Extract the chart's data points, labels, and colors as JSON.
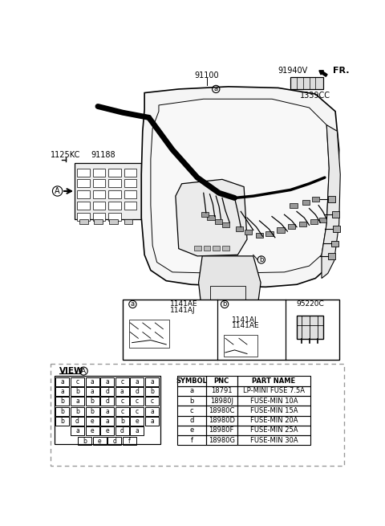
{
  "bg_color": "#ffffff",
  "fig_width": 4.8,
  "fig_height": 6.55,
  "dpi": 100,
  "labels": {
    "fr": "FR.",
    "part_91100": "91100",
    "part_91940v": "91940V",
    "part_1339cc": "1339CC",
    "part_1125kc": "1125KC",
    "part_91188": "91188",
    "detail_1141ae": "1141AE",
    "detail_1141aj": "1141AJ",
    "detail_1141aj2": "1141AJ",
    "detail_1141ae2": "1141AE",
    "detail_95220c": "95220C"
  },
  "table": {
    "headers": [
      "SYMBOL",
      "PNC",
      "PART NAME"
    ],
    "rows": [
      [
        "a",
        "18791",
        "LP-MINI FUSE 7.5A"
      ],
      [
        "b",
        "18980J",
        "FUSE-MIN 10A"
      ],
      [
        "c",
        "18980C",
        "FUSE-MIN 15A"
      ],
      [
        "d",
        "18980D",
        "FUSE-MIN 20A"
      ],
      [
        "e",
        "18980F",
        "FUSE-MIN 25A"
      ],
      [
        "f",
        "18980G",
        "FUSE-MIN 30A"
      ]
    ]
  },
  "fuse_grid_rows": [
    [
      "a",
      "c",
      "a",
      "a",
      "c",
      "a",
      "a"
    ],
    [
      "a",
      "b",
      "a",
      "d",
      "a",
      "d",
      "b"
    ],
    [
      "b",
      "a",
      "b",
      "d",
      "c",
      "c",
      "c"
    ],
    [
      "b",
      "b",
      "b",
      "a",
      "c",
      "c",
      "a"
    ],
    [
      "b",
      "d",
      "e",
      "a",
      "b",
      "e",
      "a"
    ],
    [
      "a",
      "e",
      "e",
      "d",
      "a"
    ],
    [
      "b",
      "e",
      "d",
      "f"
    ]
  ]
}
